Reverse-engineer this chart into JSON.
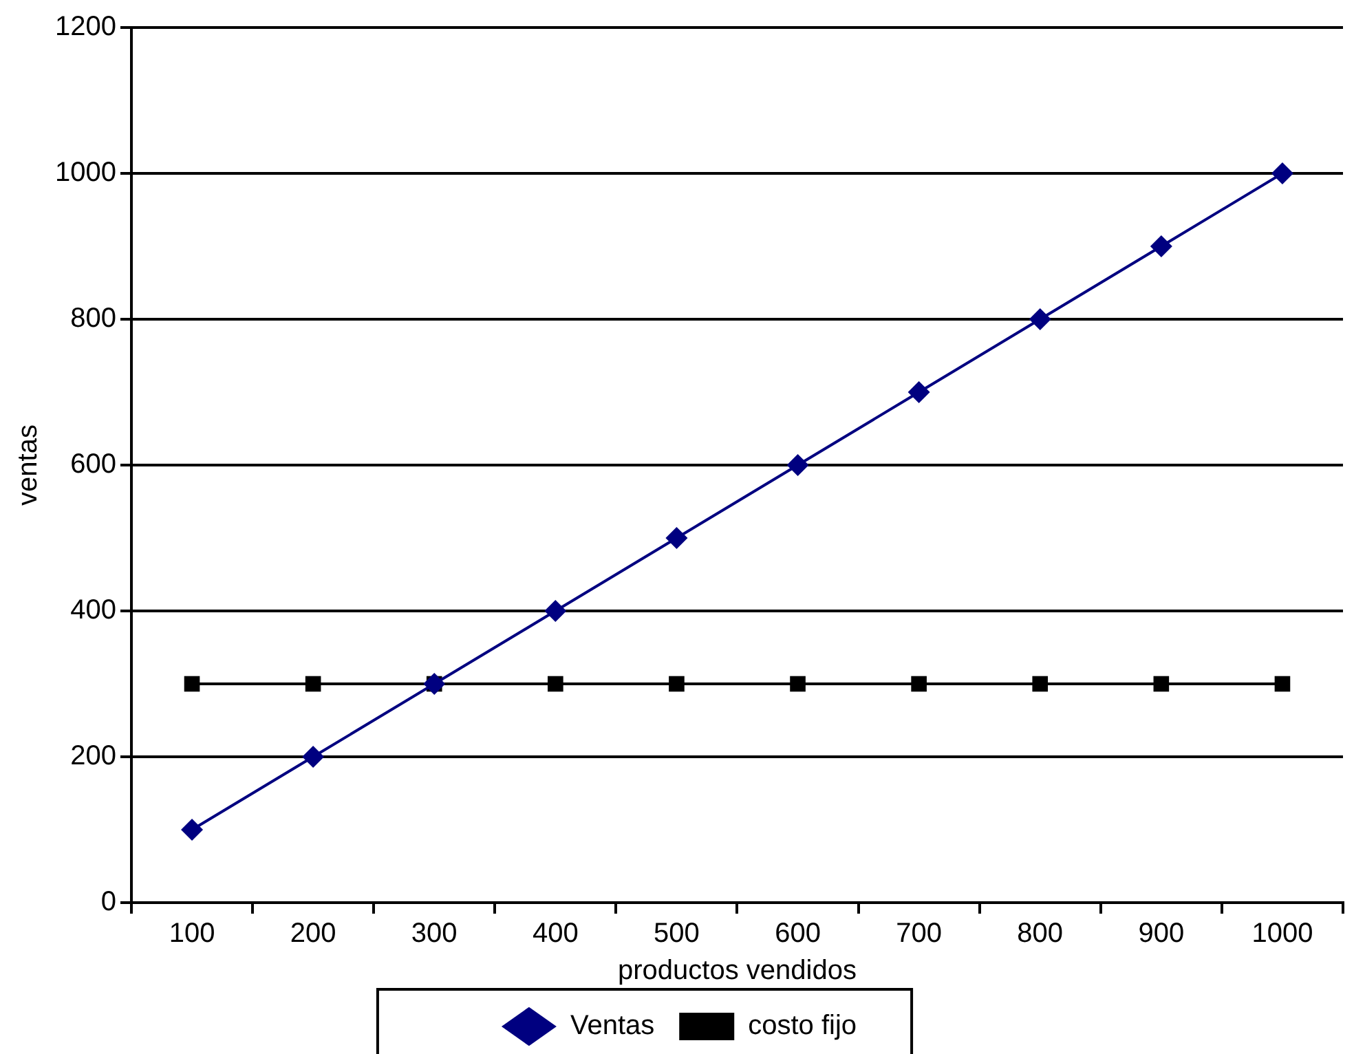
{
  "chart_data": {
    "type": "line",
    "xlabel": "productos vendidos",
    "ylabel": "ventas",
    "categories": [
      "100",
      "200",
      "300",
      "400",
      "500",
      "600",
      "700",
      "800",
      "900",
      "1000"
    ],
    "series": [
      {
        "name": "Ventas",
        "color": "#000080",
        "marker": "diamond",
        "values": [
          100,
          200,
          300,
          400,
          500,
          600,
          700,
          800,
          900,
          1000
        ]
      },
      {
        "name": "costo fijo",
        "color": "#000000",
        "marker": "square",
        "values": [
          300,
          300,
          300,
          300,
          300,
          300,
          300,
          300,
          300,
          300
        ]
      }
    ],
    "ylim": [
      0,
      1200
    ],
    "yticks": [
      0,
      200,
      400,
      600,
      800,
      1000,
      1200
    ],
    "grid": "y",
    "legend": "bottom",
    "line_style": "solid"
  }
}
